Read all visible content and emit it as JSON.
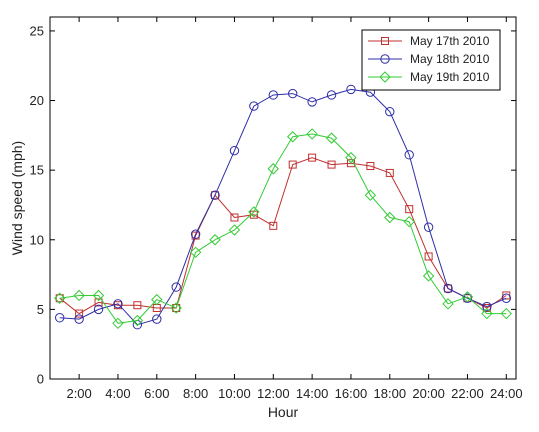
{
  "chart_data": {
    "type": "line",
    "title": "",
    "xlabel": "Hour",
    "ylabel": "Wind speed (mph)",
    "x": [
      1,
      2,
      3,
      4,
      5,
      6,
      7,
      8,
      9,
      10,
      11,
      12,
      13,
      14,
      15,
      16,
      17,
      18,
      19,
      20,
      21,
      22,
      23,
      24
    ],
    "xlim": [
      0.5,
      24.5
    ],
    "ylim": [
      0,
      26
    ],
    "x_ticks": [
      2,
      4,
      6,
      8,
      10,
      12,
      14,
      16,
      18,
      20,
      22,
      24
    ],
    "x_tick_labels": [
      "2:00",
      "4:00",
      "6:00",
      "8:00",
      "10:00",
      "12:00",
      "14:00",
      "16:00",
      "18:00",
      "20:00",
      "22:00",
      "24:00"
    ],
    "y_ticks": [
      0,
      5,
      10,
      15,
      20,
      25
    ],
    "y_tick_labels": [
      "0",
      "5",
      "10",
      "15",
      "20",
      "25"
    ],
    "grid": false,
    "legend_position": "top-right",
    "series": [
      {
        "name": "May 17th 2010",
        "color": "#c0302f",
        "marker": "square",
        "values": [
          5.8,
          4.7,
          5.5,
          5.3,
          5.3,
          5.1,
          5.1,
          10.3,
          13.2,
          11.6,
          11.8,
          11.0,
          15.4,
          15.9,
          15.4,
          15.5,
          15.3,
          14.8,
          12.2,
          8.8,
          6.5,
          5.8,
          5.1,
          6.0
        ]
      },
      {
        "name": "May 18th 2010",
        "color": "#2e2ea8",
        "marker": "circle",
        "values": [
          4.4,
          4.3,
          5.0,
          5.4,
          3.9,
          4.3,
          6.6,
          10.4,
          13.2,
          16.4,
          19.6,
          20.4,
          20.5,
          19.9,
          20.4,
          20.8,
          20.6,
          19.2,
          16.1,
          10.9,
          6.5,
          5.8,
          5.2,
          5.8
        ]
      },
      {
        "name": "May 19th 2010",
        "color": "#33cc33",
        "marker": "diamond",
        "values": [
          5.8,
          6.0,
          6.0,
          4.0,
          4.2,
          5.7,
          5.1,
          9.1,
          10.0,
          10.7,
          12.0,
          15.1,
          17.4,
          17.6,
          17.3,
          15.9,
          13.2,
          11.6,
          11.3,
          7.4,
          5.4,
          5.9,
          4.7,
          4.7
        ]
      }
    ]
  }
}
